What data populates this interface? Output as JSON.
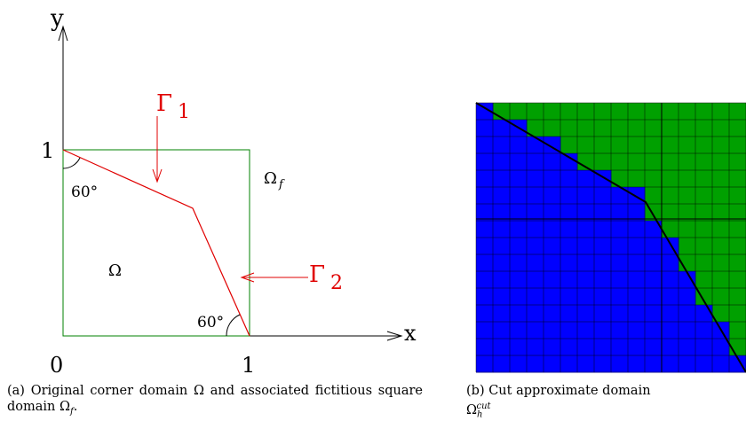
{
  "panel_a": {
    "axis_y_label": "y",
    "axis_x_label": "x",
    "tick_y_1": "1",
    "tick_x_0": "0",
    "tick_x_1": "1",
    "gamma1_label": "Γ",
    "gamma1_sub": "1",
    "gamma2_label": "Γ",
    "gamma2_sub": "2",
    "omega_f_label": "Ω",
    "omega_f_sub": "f",
    "omega_label": "Ω",
    "angle_top": "60°",
    "angle_bottom": "60°",
    "caption_prefix": "(a) Original corner domain",
    "caption_omega": "Ω",
    "caption_middle": "and associated fictitious square domain",
    "caption_omega_f": "Ω",
    "caption_f_sub": "f",
    "caption_end": "."
  },
  "panel_b": {
    "caption_prefix": "(b) Cut approximate domain",
    "caption_omega": "Ω",
    "caption_sub": "h",
    "caption_sup": "cut"
  },
  "colors": {
    "square": "#008000",
    "boundary": "#e00000",
    "inside": "#0000ff",
    "outside": "#00a000",
    "grid": "#000000"
  }
}
